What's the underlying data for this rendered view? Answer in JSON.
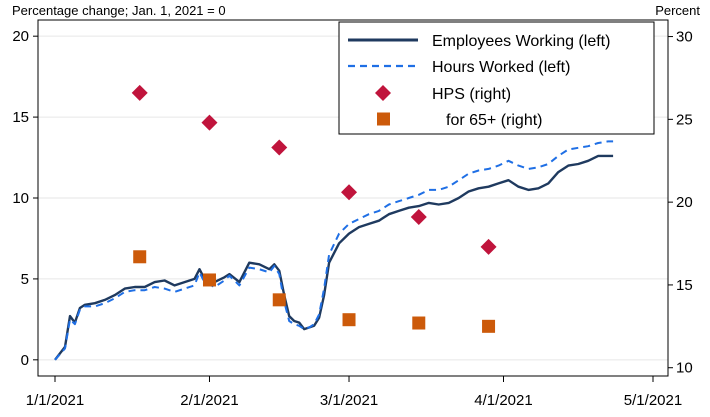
{
  "chart_data": {
    "type": "line",
    "left_axis_note": "Percentage change; Jan. 1, 2021 = 0",
    "right_axis_note": "Percent",
    "left_axis": {
      "ylim": [
        -1,
        21
      ],
      "ticks": [
        0,
        5,
        10,
        15,
        20
      ]
    },
    "right_axis": {
      "ylim": [
        9.5,
        31
      ],
      "ticks": [
        10,
        15,
        20,
        25,
        30
      ]
    },
    "x_axis": {
      "start": "2021-01-01",
      "end": "2021-05-01",
      "ticks": [
        "2021-01-01",
        "2021-02-01",
        "2021-03-01",
        "2021-04-01",
        "2021-05-01"
      ],
      "tick_labels": [
        "1/1/2021",
        "2/1/2021",
        "3/1/2021",
        "4/1/2021",
        "5/1/2021"
      ]
    },
    "grid": "horizontal",
    "legend_position": "top-right",
    "series": [
      {
        "name": "Employees Working (left)",
        "axis": "left",
        "style": "solid",
        "color": "#1f3a5f",
        "points": [
          [
            "2021-01-01",
            0.0
          ],
          [
            "2021-01-03",
            0.8
          ],
          [
            "2021-01-04",
            2.7
          ],
          [
            "2021-01-05",
            2.3
          ],
          [
            "2021-01-06",
            3.2
          ],
          [
            "2021-01-07",
            3.4
          ],
          [
            "2021-01-09",
            3.5
          ],
          [
            "2021-01-11",
            3.7
          ],
          [
            "2021-01-13",
            4.0
          ],
          [
            "2021-01-15",
            4.4
          ],
          [
            "2021-01-17",
            4.5
          ],
          [
            "2021-01-19",
            4.5
          ],
          [
            "2021-01-21",
            4.8
          ],
          [
            "2021-01-23",
            4.9
          ],
          [
            "2021-01-25",
            4.6
          ],
          [
            "2021-01-27",
            4.8
          ],
          [
            "2021-01-29",
            5.0
          ],
          [
            "2021-01-30",
            5.6
          ],
          [
            "2021-01-31",
            5.0
          ],
          [
            "2021-02-02",
            4.8
          ],
          [
            "2021-02-04",
            5.1
          ],
          [
            "2021-02-05",
            5.3
          ],
          [
            "2021-02-07",
            4.8
          ],
          [
            "2021-02-09",
            6.0
          ],
          [
            "2021-02-11",
            5.9
          ],
          [
            "2021-02-13",
            5.6
          ],
          [
            "2021-02-14",
            5.9
          ],
          [
            "2021-02-15",
            5.5
          ],
          [
            "2021-02-16",
            4.0
          ],
          [
            "2021-02-17",
            2.7
          ],
          [
            "2021-02-18",
            2.4
          ],
          [
            "2021-02-19",
            2.3
          ],
          [
            "2021-02-20",
            1.9
          ],
          [
            "2021-02-21",
            2.0
          ],
          [
            "2021-02-22",
            2.1
          ],
          [
            "2021-02-23",
            2.6
          ],
          [
            "2021-02-24",
            4.0
          ],
          [
            "2021-02-25",
            6.0
          ],
          [
            "2021-02-27",
            7.2
          ],
          [
            "2021-03-01",
            7.8
          ],
          [
            "2021-03-03",
            8.2
          ],
          [
            "2021-03-05",
            8.4
          ],
          [
            "2021-03-07",
            8.6
          ],
          [
            "2021-03-09",
            9.0
          ],
          [
            "2021-03-11",
            9.2
          ],
          [
            "2021-03-13",
            9.4
          ],
          [
            "2021-03-15",
            9.5
          ],
          [
            "2021-03-17",
            9.7
          ],
          [
            "2021-03-19",
            9.6
          ],
          [
            "2021-03-21",
            9.7
          ],
          [
            "2021-03-23",
            10.0
          ],
          [
            "2021-03-25",
            10.4
          ],
          [
            "2021-03-27",
            10.6
          ],
          [
            "2021-03-29",
            10.7
          ],
          [
            "2021-03-31",
            10.9
          ],
          [
            "2021-04-02",
            11.1
          ],
          [
            "2021-04-04",
            10.7
          ],
          [
            "2021-04-06",
            10.5
          ],
          [
            "2021-04-08",
            10.6
          ],
          [
            "2021-04-10",
            10.9
          ],
          [
            "2021-04-12",
            11.6
          ],
          [
            "2021-04-14",
            12.0
          ],
          [
            "2021-04-16",
            12.1
          ],
          [
            "2021-04-18",
            12.3
          ],
          [
            "2021-04-20",
            12.6
          ],
          [
            "2021-04-22",
            12.6
          ],
          [
            "2021-04-23",
            12.6
          ]
        ]
      },
      {
        "name": "Hours Worked (left)",
        "axis": "left",
        "style": "dashed",
        "color": "#1f6fe5",
        "points": [
          [
            "2021-01-01",
            0.0
          ],
          [
            "2021-01-03",
            0.7
          ],
          [
            "2021-01-04",
            2.5
          ],
          [
            "2021-01-05",
            2.2
          ],
          [
            "2021-01-06",
            3.1
          ],
          [
            "2021-01-07",
            3.3
          ],
          [
            "2021-01-09",
            3.3
          ],
          [
            "2021-01-11",
            3.5
          ],
          [
            "2021-01-13",
            3.8
          ],
          [
            "2021-01-15",
            4.2
          ],
          [
            "2021-01-17",
            4.3
          ],
          [
            "2021-01-19",
            4.3
          ],
          [
            "2021-01-21",
            4.5
          ],
          [
            "2021-01-23",
            4.4
          ],
          [
            "2021-01-25",
            4.2
          ],
          [
            "2021-01-27",
            4.4
          ],
          [
            "2021-01-29",
            4.6
          ],
          [
            "2021-01-30",
            5.4
          ],
          [
            "2021-01-31",
            4.8
          ],
          [
            "2021-02-02",
            4.5
          ],
          [
            "2021-02-04",
            4.9
          ],
          [
            "2021-02-05",
            5.2
          ],
          [
            "2021-02-07",
            4.6
          ],
          [
            "2021-02-09",
            5.7
          ],
          [
            "2021-02-11",
            5.6
          ],
          [
            "2021-02-13",
            5.4
          ],
          [
            "2021-02-14",
            5.8
          ],
          [
            "2021-02-15",
            5.3
          ],
          [
            "2021-02-16",
            3.6
          ],
          [
            "2021-02-17",
            2.4
          ],
          [
            "2021-02-18",
            2.2
          ],
          [
            "2021-02-19",
            2.1
          ],
          [
            "2021-02-20",
            1.9
          ],
          [
            "2021-02-21",
            2.0
          ],
          [
            "2021-02-22",
            2.2
          ],
          [
            "2021-02-23",
            2.8
          ],
          [
            "2021-02-24",
            4.4
          ],
          [
            "2021-02-25",
            6.5
          ],
          [
            "2021-02-27",
            7.8
          ],
          [
            "2021-03-01",
            8.4
          ],
          [
            "2021-03-03",
            8.7
          ],
          [
            "2021-03-05",
            9.0
          ],
          [
            "2021-03-07",
            9.2
          ],
          [
            "2021-03-09",
            9.6
          ],
          [
            "2021-03-11",
            9.8
          ],
          [
            "2021-03-13",
            10.0
          ],
          [
            "2021-03-15",
            10.2
          ],
          [
            "2021-03-17",
            10.5
          ],
          [
            "2021-03-19",
            10.5
          ],
          [
            "2021-03-21",
            10.7
          ],
          [
            "2021-03-23",
            11.1
          ],
          [
            "2021-03-25",
            11.5
          ],
          [
            "2021-03-27",
            11.7
          ],
          [
            "2021-03-29",
            11.8
          ],
          [
            "2021-03-31",
            12.0
          ],
          [
            "2021-04-02",
            12.3
          ],
          [
            "2021-04-04",
            12.0
          ],
          [
            "2021-04-06",
            11.8
          ],
          [
            "2021-04-08",
            11.9
          ],
          [
            "2021-04-10",
            12.1
          ],
          [
            "2021-04-12",
            12.6
          ],
          [
            "2021-04-14",
            13.0
          ],
          [
            "2021-04-16",
            13.1
          ],
          [
            "2021-04-18",
            13.2
          ],
          [
            "2021-04-20",
            13.4
          ],
          [
            "2021-04-22",
            13.5
          ],
          [
            "2021-04-23",
            13.5
          ]
        ]
      },
      {
        "name": "HPS (right)",
        "axis": "right",
        "style": "diamond",
        "color": "#c0143c",
        "points": [
          [
            "2021-01-18",
            26.6
          ],
          [
            "2021-02-01",
            24.8
          ],
          [
            "2021-02-15",
            23.3
          ],
          [
            "2021-03-01",
            20.6
          ],
          [
            "2021-03-15",
            19.1
          ],
          [
            "2021-03-29",
            17.3
          ]
        ]
      },
      {
        "name": "for 65+ (right)",
        "axis": "right",
        "style": "square",
        "color": "#cc5a0a",
        "points": [
          [
            "2021-01-18",
            16.7
          ],
          [
            "2021-02-01",
            15.3
          ],
          [
            "2021-02-15",
            14.1
          ],
          [
            "2021-03-01",
            12.9
          ],
          [
            "2021-03-15",
            12.7
          ],
          [
            "2021-03-29",
            12.5
          ]
        ]
      }
    ]
  }
}
